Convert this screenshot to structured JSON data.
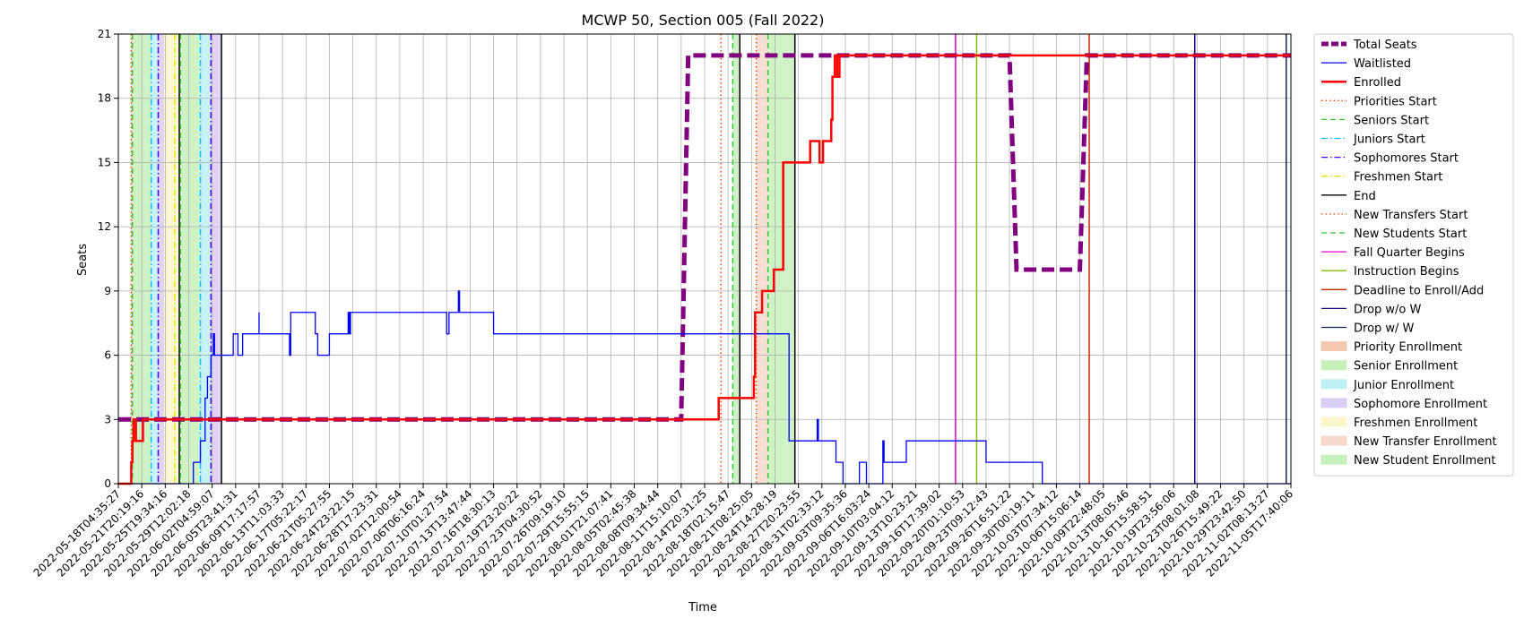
{
  "chart_data": {
    "type": "line",
    "title": "MCWP 50, Section 005 (Fall 2022)",
    "xlabel": "Time",
    "ylabel": "Seats",
    "ylim": [
      0,
      21
    ],
    "yticks": [
      0,
      3,
      6,
      9,
      12,
      15,
      18,
      21
    ],
    "grid": true,
    "legend_placement": "outside-right",
    "xticks": [
      "2022-05-18T04:35:27",
      "2022-05-21T20:19:16",
      "2022-05-25T19:34:16",
      "2022-05-29T12:02:18",
      "2022-06-02T04:59:07",
      "2022-06-05T23:41:31",
      "2022-06-09T17:17:57",
      "2022-06-13T11:03:33",
      "2022-06-17T05:22:17",
      "2022-06-21T05:27:55",
      "2022-06-24T23:22:15",
      "2022-06-28T17:23:31",
      "2022-07-02T12:00:54",
      "2022-07-06T06:16:24",
      "2022-07-10T01:27:54",
      "2022-07-13T13:47:44",
      "2022-07-16T18:30:13",
      "2022-07-19T23:20:22",
      "2022-07-23T04:30:52",
      "2022-07-26T09:19:10",
      "2022-07-29T15:55:15",
      "2022-08-01T21:07:41",
      "2022-08-05T02:45:38",
      "2022-08-08T09:34:44",
      "2022-08-11T15:10:07",
      "2022-08-14T20:31:25",
      "2022-08-18T02:15:47",
      "2022-08-21T08:25:05",
      "2022-08-24T14:28:19",
      "2022-08-27T20:23:55",
      "2022-08-31T02:33:12",
      "2022-09-03T09:35:36",
      "2022-09-06T16:03:24",
      "2022-09-10T03:04:12",
      "2022-09-13T10:23:21",
      "2022-09-16T17:39:02",
      "2022-09-20T01:10:53",
      "2022-09-23T09:12:43",
      "2022-09-26T16:51:22",
      "2022-09-30T00:19:11",
      "2022-10-03T07:34:12",
      "2022-10-06T15:06:14",
      "2022-10-09T22:48:05",
      "2022-10-13T08:05:46",
      "2022-10-16T15:58:51",
      "2022-10-19T23:56:06",
      "2022-10-23T08:01:08",
      "2022-10-26T15:49:22",
      "2022-10-29T23:42:50",
      "2022-11-02T08:13:27",
      "2022-11-05T17:40:06"
    ],
    "series": [
      {
        "name": "Total Seats",
        "color": "#800080",
        "style": "dashed-thick",
        "points": [
          [
            0,
            3
          ],
          [
            24,
            3
          ],
          [
            24.3,
            20
          ],
          [
            38,
            20
          ],
          [
            38.3,
            10
          ],
          [
            41,
            10
          ],
          [
            41.3,
            20
          ],
          [
            50,
            20
          ]
        ]
      },
      {
        "name": "Waitlisted",
        "color": "#0000ff",
        "style": "solid",
        "points": [
          [
            0,
            0
          ],
          [
            3.2,
            0
          ],
          [
            3.2,
            1
          ],
          [
            3.5,
            1
          ],
          [
            3.5,
            2
          ],
          [
            3.7,
            2
          ],
          [
            3.7,
            4
          ],
          [
            3.8,
            4
          ],
          [
            3.8,
            5
          ],
          [
            3.95,
            5
          ],
          [
            3.95,
            6
          ],
          [
            4.05,
            6
          ],
          [
            4.05,
            7
          ],
          [
            4.1,
            7
          ],
          [
            4.1,
            6
          ],
          [
            4.9,
            6
          ],
          [
            4.9,
            7
          ],
          [
            5.1,
            7
          ],
          [
            5.1,
            6
          ],
          [
            5.3,
            6
          ],
          [
            5.3,
            7
          ],
          [
            6.0,
            7
          ],
          [
            6.0,
            8
          ],
          [
            6.0,
            7
          ],
          [
            7.3,
            7
          ],
          [
            7.3,
            6
          ],
          [
            7.35,
            6
          ],
          [
            7.35,
            8
          ],
          [
            8.4,
            8
          ],
          [
            8.4,
            7
          ],
          [
            8.5,
            7
          ],
          [
            8.5,
            6
          ],
          [
            9.0,
            6
          ],
          [
            9.0,
            7
          ],
          [
            9.8,
            7
          ],
          [
            9.8,
            8
          ],
          [
            9.85,
            8
          ],
          [
            9.85,
            7
          ],
          [
            9.9,
            7
          ],
          [
            9.9,
            8
          ],
          [
            14.0,
            8
          ],
          [
            14.0,
            7
          ],
          [
            14.1,
            7
          ],
          [
            14.1,
            8
          ],
          [
            14.5,
            8
          ],
          [
            14.5,
            9
          ],
          [
            14.55,
            9
          ],
          [
            14.55,
            8
          ],
          [
            16.0,
            8
          ],
          [
            16.0,
            7
          ],
          [
            28.6,
            7
          ],
          [
            28.6,
            2
          ],
          [
            29.8,
            2
          ],
          [
            29.8,
            3
          ],
          [
            29.85,
            3
          ],
          [
            29.85,
            2
          ],
          [
            30.6,
            2
          ],
          [
            30.6,
            1
          ],
          [
            30.9,
            1
          ],
          [
            30.9,
            0
          ],
          [
            31.6,
            0
          ],
          [
            31.6,
            1
          ],
          [
            31.9,
            1
          ],
          [
            31.9,
            0
          ],
          [
            32.6,
            0
          ],
          [
            32.6,
            2
          ],
          [
            32.65,
            2
          ],
          [
            32.65,
            1
          ],
          [
            33.6,
            1
          ],
          [
            33.6,
            2
          ],
          [
            37.0,
            2
          ],
          [
            37.0,
            1
          ],
          [
            39.4,
            1
          ],
          [
            39.4,
            0
          ],
          [
            50,
            0
          ]
        ]
      },
      {
        "name": "Enrolled",
        "color": "#ff0000",
        "style": "solid-thick",
        "points": [
          [
            0,
            0
          ],
          [
            0.55,
            0
          ],
          [
            0.55,
            1
          ],
          [
            0.6,
            1
          ],
          [
            0.6,
            2
          ],
          [
            0.65,
            2
          ],
          [
            0.65,
            3
          ],
          [
            0.75,
            3
          ],
          [
            0.75,
            2
          ],
          [
            1.05,
            2
          ],
          [
            1.05,
            3
          ],
          [
            25.6,
            3
          ],
          [
            25.6,
            4
          ],
          [
            27.1,
            4
          ],
          [
            27.1,
            5
          ],
          [
            27.15,
            5
          ],
          [
            27.15,
            8
          ],
          [
            27.45,
            8
          ],
          [
            27.45,
            9
          ],
          [
            27.95,
            9
          ],
          [
            27.95,
            10
          ],
          [
            28.35,
            10
          ],
          [
            28.35,
            15
          ],
          [
            29.5,
            15
          ],
          [
            29.5,
            16
          ],
          [
            29.9,
            16
          ],
          [
            29.9,
            15
          ],
          [
            30.05,
            15
          ],
          [
            30.05,
            16
          ],
          [
            30.4,
            16
          ],
          [
            30.4,
            17
          ],
          [
            30.45,
            17
          ],
          [
            30.45,
            19
          ],
          [
            30.55,
            19
          ],
          [
            30.55,
            20
          ],
          [
            30.65,
            20
          ],
          [
            30.65,
            19
          ],
          [
            30.75,
            19
          ],
          [
            30.75,
            20
          ],
          [
            50,
            20
          ]
        ]
      }
    ],
    "vlines": [
      {
        "name": "Priorities Start",
        "x": 0.55,
        "color": "#ff4500",
        "style": "dotted"
      },
      {
        "name": "Seniors Start",
        "x": 0.6,
        "color": "#32cd32",
        "style": "dashed"
      },
      {
        "name": "Juniors Start",
        "x": 1.4,
        "color": "#00bfff",
        "style": "dashdot"
      },
      {
        "name": "Sophomores Start",
        "x": 1.7,
        "color": "#4b00ff",
        "style": "dashdot"
      },
      {
        "name": "Freshmen Start",
        "x": 2.4,
        "color": "#e6e600",
        "style": "dashdot"
      },
      {
        "name": "End",
        "x": 2.6,
        "color": "#000000",
        "style": "solid"
      },
      {
        "name": "Juniors Start",
        "x": 3.5,
        "color": "#00bfff",
        "style": "dashdot"
      },
      {
        "name": "Seniors Start",
        "x": 2.65,
        "color": "#32cd32",
        "style": "dashed"
      },
      {
        "name": "Sophomores Start",
        "x": 3.95,
        "color": "#4b00ff",
        "style": "dashdot"
      },
      {
        "name": "End",
        "x": 4.4,
        "color": "#000000",
        "style": "solid"
      },
      {
        "name": "New Transfers Start",
        "x": 25.7,
        "color": "#ff4500",
        "style": "dotted"
      },
      {
        "name": "New Students Start",
        "x": 26.2,
        "color": "#32cd32",
        "style": "dashed"
      },
      {
        "name": "End",
        "x": 26.5,
        "color": "#000000",
        "style": "solid"
      },
      {
        "name": "New Transfers Start",
        "x": 27.2,
        "color": "#ff4500",
        "style": "dotted"
      },
      {
        "name": "New Students Start",
        "x": 27.7,
        "color": "#32cd32",
        "style": "dashed"
      },
      {
        "name": "End",
        "x": 28.85,
        "color": "#000000",
        "style": "solid"
      },
      {
        "name": "Fall Quarter Begins",
        "x": 35.7,
        "color": "#e600c8",
        "style": "solid"
      },
      {
        "name": "Instruction Begins",
        "x": 36.6,
        "color": "#7fbf00",
        "style": "solid"
      },
      {
        "name": "Deadline to Enroll/Add",
        "x": 41.4,
        "color": "#cc2200",
        "style": "solid"
      },
      {
        "name": "Drop w/o W",
        "x": 45.9,
        "color": "#1a0080",
        "style": "solid"
      },
      {
        "name": "Drop w/ W",
        "x": 49.8,
        "color": "#1a2250",
        "style": "solid"
      }
    ],
    "spans": [
      {
        "name": "Priority Enrollment",
        "from": 0.55,
        "to": 0.6,
        "color": "#f4c9b0"
      },
      {
        "name": "Senior Enrollment",
        "from": 0.6,
        "to": 1.4,
        "color": "#c7f0bc"
      },
      {
        "name": "Junior Enrollment",
        "from": 1.4,
        "to": 1.7,
        "color": "#bff0f5"
      },
      {
        "name": "Sophomore Enrollment",
        "from": 1.7,
        "to": 1.95,
        "color": "#dacdf6"
      },
      {
        "name": "Freshmen Enrollment",
        "from": 1.95,
        "to": 2.6,
        "color": "#fbf6cc"
      },
      {
        "name": "Senior Enrollment",
        "from": 2.65,
        "to": 3.5,
        "color": "#c7f0bc"
      },
      {
        "name": "Junior Enrollment",
        "from": 3.5,
        "to": 3.95,
        "color": "#bff0f5"
      },
      {
        "name": "Sophomore Enrollment",
        "from": 3.95,
        "to": 4.4,
        "color": "#dacdf6"
      },
      {
        "name": "New Transfer Enrollment",
        "from": 27.2,
        "to": 27.7,
        "color": "#f7d9cc"
      },
      {
        "name": "New Student Enrollment",
        "from": 27.7,
        "to": 28.85,
        "color": "#c7f0bc"
      },
      {
        "name": "New Student Enrollment",
        "from": 26.2,
        "to": 26.5,
        "color": "#c7f0bc"
      }
    ],
    "legend": [
      {
        "label": "Total Seats",
        "kind": "line",
        "color": "#800080",
        "style": "dashed-thick"
      },
      {
        "label": "Waitlisted",
        "kind": "line",
        "color": "#0000ff",
        "style": "solid"
      },
      {
        "label": "Enrolled",
        "kind": "line",
        "color": "#ff0000",
        "style": "solid-thick"
      },
      {
        "label": "Priorities Start",
        "kind": "line",
        "color": "#ff4500",
        "style": "dotted"
      },
      {
        "label": "Seniors Start",
        "kind": "line",
        "color": "#32cd32",
        "style": "dashed"
      },
      {
        "label": "Juniors Start",
        "kind": "line",
        "color": "#00bfff",
        "style": "dashdot"
      },
      {
        "label": "Sophomores Start",
        "kind": "line",
        "color": "#4b00ff",
        "style": "dashdot"
      },
      {
        "label": "Freshmen Start",
        "kind": "line",
        "color": "#e6e600",
        "style": "dashdot"
      },
      {
        "label": "End",
        "kind": "line",
        "color": "#000000",
        "style": "solid"
      },
      {
        "label": "New Transfers Start",
        "kind": "line",
        "color": "#ff4500",
        "style": "dotted"
      },
      {
        "label": "New Students Start",
        "kind": "line",
        "color": "#32cd32",
        "style": "dashed"
      },
      {
        "label": "Fall Quarter Begins",
        "kind": "line",
        "color": "#e600c8",
        "style": "solid"
      },
      {
        "label": "Instruction Begins",
        "kind": "line",
        "color": "#7fbf00",
        "style": "solid"
      },
      {
        "label": "Deadline to Enroll/Add",
        "kind": "line",
        "color": "#cc2200",
        "style": "solid"
      },
      {
        "label": "Drop w/o W",
        "kind": "line",
        "color": "#1a0080",
        "style": "solid"
      },
      {
        "label": "Drop w/ W",
        "kind": "line",
        "color": "#1a2250",
        "style": "solid"
      },
      {
        "label": "Priority Enrollment",
        "kind": "patch",
        "color": "#f4c9b0"
      },
      {
        "label": "Senior Enrollment",
        "kind": "patch",
        "color": "#c7f0bc"
      },
      {
        "label": "Junior Enrollment",
        "kind": "patch",
        "color": "#bff0f5"
      },
      {
        "label": "Sophomore Enrollment",
        "kind": "patch",
        "color": "#dacdf6"
      },
      {
        "label": "Freshmen Enrollment",
        "kind": "patch",
        "color": "#fbf6cc"
      },
      {
        "label": "New Transfer Enrollment",
        "kind": "patch",
        "color": "#f7d9cc"
      },
      {
        "label": "New Student Enrollment",
        "kind": "patch",
        "color": "#c7f0bc"
      }
    ]
  }
}
